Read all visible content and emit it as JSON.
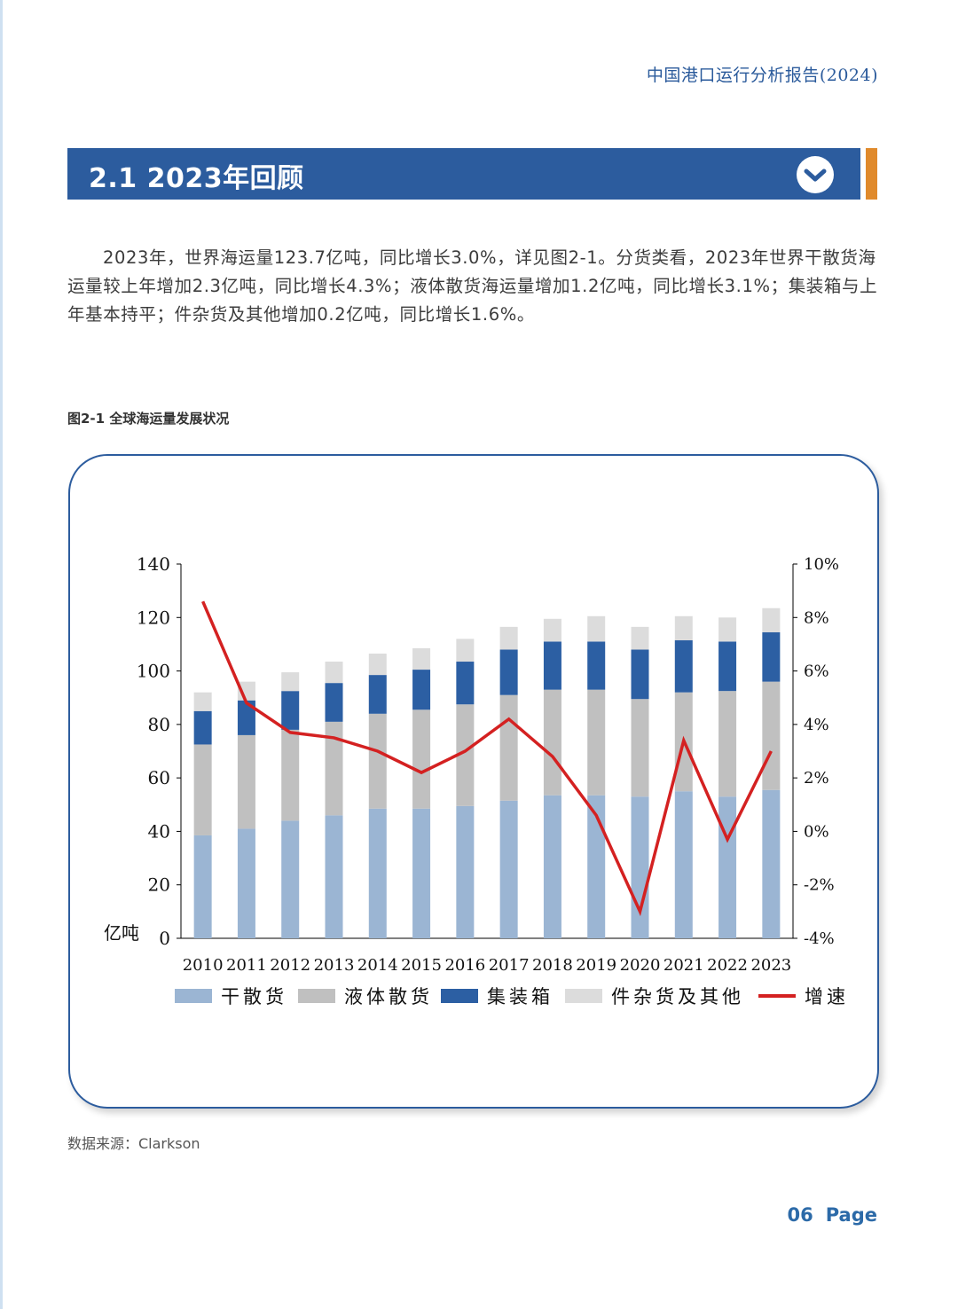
{
  "header": {
    "running_title": "中国港口运行分析报告(2024)"
  },
  "section": {
    "title": "2.1 2023年回顾"
  },
  "intro": "2023年，世界海运量123.7亿吨，同比增长3.0%，详见图2-1。分货类看，2023年世界干散货海运量较上年增加2.3亿吨，同比增长4.3%；液体散货海运量增加1.2亿吨，同比增长3.1%；集装箱与上年基本持平；件杂货及其他增加0.2亿吨，同比增长1.6%。",
  "figure": {
    "caption": "图2-1  全球海运量发展状况",
    "source": "数据来源：Clarkson"
  },
  "footer": {
    "page_number": "06",
    "page_label": "Page"
  },
  "chart_data": {
    "type": "bar",
    "stacked": true,
    "categories": [
      "2010",
      "2011",
      "2012",
      "2013",
      "2014",
      "2015",
      "2016",
      "2017",
      "2018",
      "2019",
      "2020",
      "2021",
      "2022",
      "2023"
    ],
    "series": [
      {
        "name": "干散货",
        "color": "#9bb5d3",
        "values": [
          38.5,
          41,
          44,
          46,
          48.5,
          48.5,
          49.5,
          51.5,
          53.5,
          53.5,
          53,
          55,
          53,
          55.5
        ]
      },
      {
        "name": "液体散货",
        "color": "#c0c0c0",
        "values": [
          34,
          35,
          34,
          35,
          35.5,
          37,
          38,
          39.5,
          39.5,
          39.5,
          36.5,
          37,
          39.5,
          40.5
        ]
      },
      {
        "name": "集装箱",
        "color": "#2c5fa3",
        "values": [
          12.5,
          13,
          14.5,
          14.5,
          14.5,
          15,
          16,
          17,
          18,
          18,
          18.5,
          19.5,
          18.5,
          18.5
        ]
      },
      {
        "name": "件杂货及其他",
        "color": "#dcdcdc",
        "values": [
          7,
          7,
          7,
          8,
          8,
          8,
          8.5,
          8.5,
          8.5,
          9.5,
          8.5,
          9,
          9,
          9
        ]
      }
    ],
    "line_series": {
      "name": "增速",
      "color": "#d42121",
      "axis": "right",
      "values": [
        8.6,
        4.8,
        3.7,
        3.5,
        3.0,
        2.2,
        3.0,
        4.2,
        2.8,
        0.6,
        -3.0,
        3.4,
        -0.3,
        3.0
      ]
    },
    "y_left": {
      "min": 0,
      "max": 140,
      "ticks": [
        "0",
        "20",
        "40",
        "60",
        "80",
        "100",
        "120",
        "140"
      ],
      "label": "亿吨"
    },
    "y_right": {
      "min": -4,
      "max": 10,
      "ticks": [
        "-4%",
        "-2%",
        "0%",
        "2%",
        "4%",
        "6%",
        "8%",
        "10%"
      ]
    },
    "grid": false,
    "legend_position": "bottom"
  }
}
